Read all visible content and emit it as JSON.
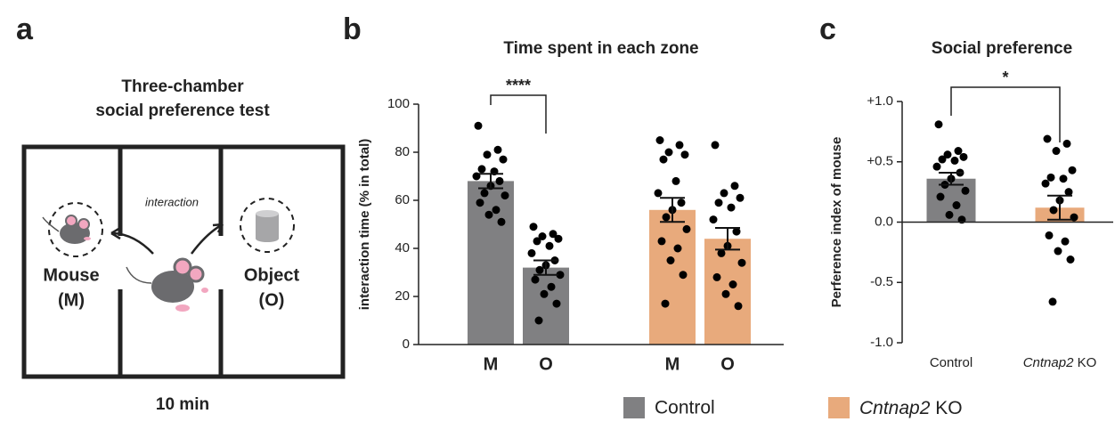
{
  "diagram": {
    "panel_label": "a",
    "title_lines": [
      "Three-chamber",
      "social preference test"
    ],
    "arrow_label": "interaction",
    "left_lines": [
      "Mouse",
      "(M)"
    ],
    "right_lines": [
      "Object",
      "(O)"
    ],
    "duration": "10 min"
  },
  "chart_data": [
    {
      "type": "bar",
      "panel_label": "b",
      "title": "Time spent in each zone",
      "y_label": "interaction time (% in total)",
      "categories": [
        "M",
        "O",
        "M",
        "O"
      ],
      "series": [
        {
          "name": "Control",
          "color": "#808082",
          "values": [
            68,
            32,
            null,
            null
          ],
          "errors": [
            3,
            3,
            null,
            null
          ],
          "points": [
            [
              91,
              81,
              79,
              77,
              73,
              72,
              70,
              68,
              66,
              63,
              62,
              59,
              56,
              54,
              51
            ],
            [
              49,
              46,
              45,
              44,
              43,
              41,
              38,
              35,
              33,
              31,
              29,
              27,
              24,
              21,
              17,
              10
            ],
            [],
            []
          ]
        },
        {
          "name": "Cntnap2 KO",
          "color": "#e8aa7c",
          "values": [
            null,
            null,
            56,
            44
          ],
          "errors": [
            null,
            null,
            5,
            4.5
          ],
          "points": [
            [],
            [],
            [
              85,
              83,
              80,
              79,
              77,
              68,
              63,
              59,
              56,
              53,
              48,
              43,
              40,
              35,
              29,
              17
            ],
            [
              83,
              66,
              63,
              61,
              59,
              57,
              52,
              47,
              41,
              38,
              34,
              28,
              25,
              21,
              16
            ]
          ]
        }
      ],
      "ylim": [
        0,
        100
      ],
      "yticks": [
        0,
        20,
        40,
        60,
        80,
        100
      ],
      "annotation": "****"
    },
    {
      "type": "bar",
      "panel_label": "c",
      "title": "Social preference",
      "y_label": "Perference index of mouse",
      "categories": [
        "Control",
        "Cntnap2 KO"
      ],
      "values": [
        0.36,
        0.12
      ],
      "errors": [
        0.05,
        0.1
      ],
      "colors": [
        "#808082",
        "#e8aa7c"
      ],
      "points": [
        [
          0.81,
          0.59,
          0.56,
          0.54,
          0.52,
          0.51,
          0.46,
          0.41,
          0.36,
          0.31,
          0.26,
          0.21,
          0.14,
          0.06,
          0.02
        ],
        [
          0.69,
          0.65,
          0.59,
          0.43,
          0.37,
          0.36,
          0.32,
          0.25,
          0.18,
          0.1,
          0.04,
          -0.11,
          -0.16,
          -0.24,
          -0.31,
          -0.66
        ]
      ],
      "ylim": [
        -1,
        1
      ],
      "yticks": [
        {
          "value": -1,
          "label": "-1.0"
        },
        {
          "value": -0.5,
          "label": "-0.5"
        },
        {
          "value": 0,
          "label": "0.0"
        },
        {
          "value": 0.5,
          "label": "+0.5"
        },
        {
          "value": 1,
          "label": "+1.0"
        }
      ],
      "annotation": "*"
    }
  ]
}
